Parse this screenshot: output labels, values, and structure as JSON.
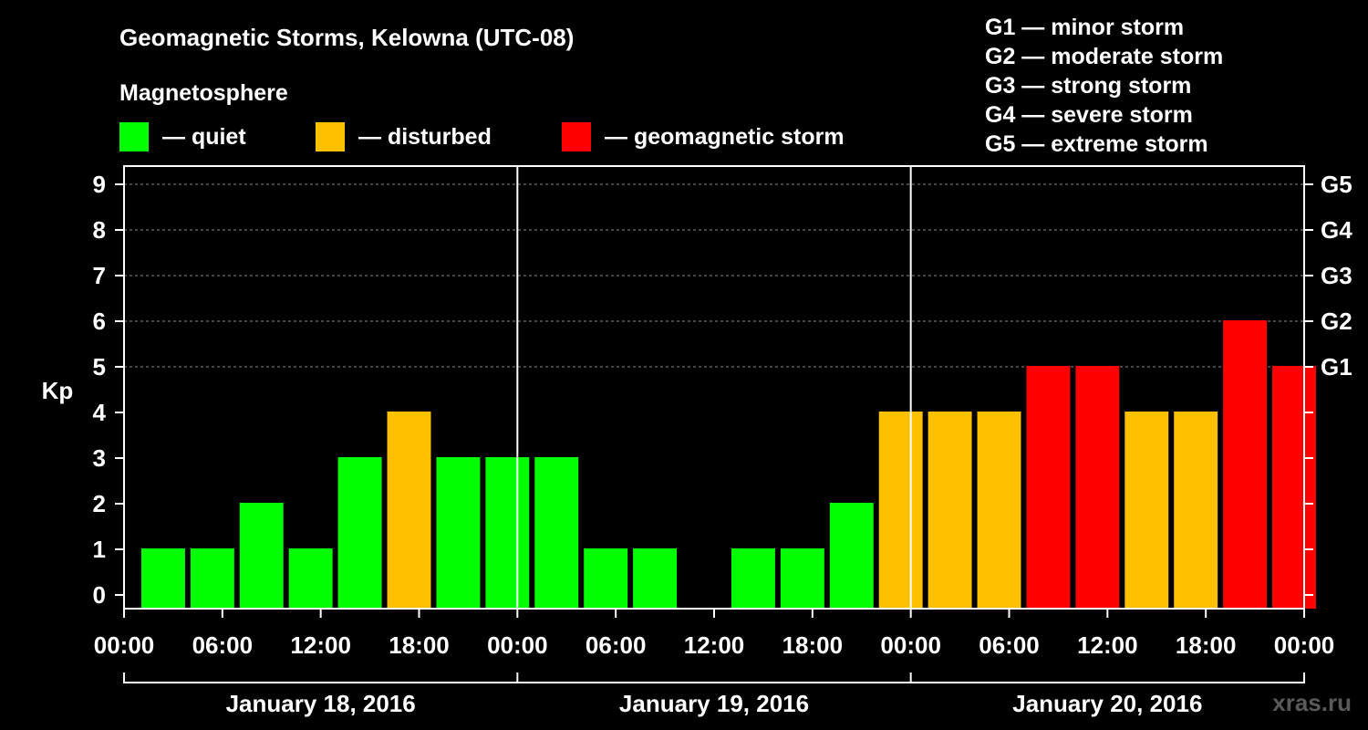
{
  "title": "Geomagnetic Storms, Kelowna (UTC-08)",
  "legend": {
    "heading": "Magnetosphere",
    "items": [
      {
        "label": "— quiet",
        "color": "#00ff00"
      },
      {
        "label": "— disturbed",
        "color": "#ffc000"
      },
      {
        "label": "— geomagnetic storm",
        "color": "#ff0000"
      }
    ]
  },
  "storm_scale": [
    "G1 — minor storm",
    "G2 — moderate storm",
    "G3 — strong storm",
    "G4 — severe storm",
    "G5 — extreme storm"
  ],
  "watermark": "xras.ru",
  "chart_data": {
    "type": "bar",
    "ylabel": "Kp",
    "ylim": [
      0,
      9
    ],
    "yticks": [
      "0",
      "1",
      "2",
      "3",
      "4",
      "5",
      "6",
      "7",
      "8",
      "9"
    ],
    "right_ticks": [
      {
        "kp": 5,
        "label": "G1"
      },
      {
        "kp": 6,
        "label": "G2"
      },
      {
        "kp": 7,
        "label": "G3"
      },
      {
        "kp": 8,
        "label": "G4"
      },
      {
        "kp": 9,
        "label": "G5"
      }
    ],
    "xticks": [
      "00:00",
      "06:00",
      "12:00",
      "18:00",
      "00:00",
      "06:00",
      "12:00",
      "18:00",
      "00:00",
      "06:00",
      "12:00",
      "18:00",
      "00:00"
    ],
    "days": [
      "January 18, 2016",
      "January 19, 2016",
      "January 20, 2016"
    ],
    "grid": true,
    "bar_interval_hours": 3,
    "first_bar_start_hour": 1,
    "values": [
      1,
      1,
      2,
      1,
      3,
      4,
      3,
      3,
      3,
      1,
      1,
      0,
      1,
      1,
      2,
      4,
      4,
      4,
      5,
      5,
      4,
      4,
      6,
      5
    ],
    "colors": [
      "#00ff00",
      "#00ff00",
      "#00ff00",
      "#00ff00",
      "#00ff00",
      "#ffc000",
      "#00ff00",
      "#00ff00",
      "#00ff00",
      "#00ff00",
      "#00ff00",
      "#00ff00",
      "#00ff00",
      "#00ff00",
      "#00ff00",
      "#ffc000",
      "#ffc000",
      "#ffc000",
      "#ff0000",
      "#ff0000",
      "#ffc000",
      "#ffc000",
      "#ff0000",
      "#ff0000"
    ]
  }
}
